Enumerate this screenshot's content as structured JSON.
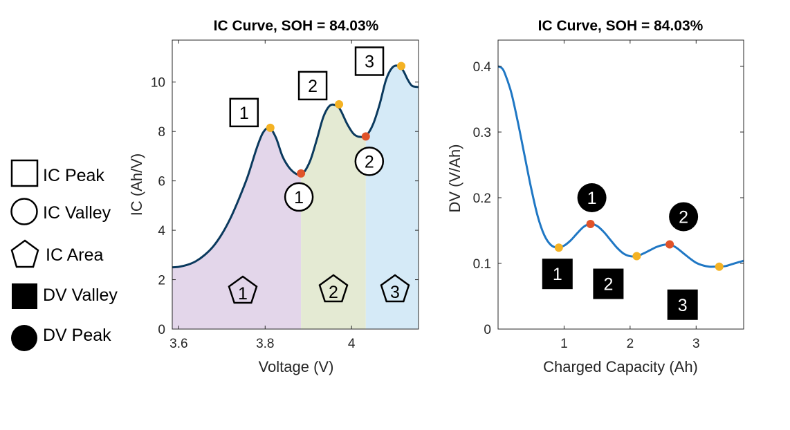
{
  "legend": {
    "items": [
      {
        "symbol": "square",
        "label": "IC Peak"
      },
      {
        "symbol": "circle",
        "label": "IC Valley"
      },
      {
        "symbol": "pentagon",
        "label": "IC Area"
      },
      {
        "symbol": "filled-square",
        "label": "DV Valley"
      },
      {
        "symbol": "filled-circle",
        "label": "DV Peak"
      }
    ]
  },
  "colors": {
    "ic_line": "#0b3a5e",
    "dv_line": "#1f77c4",
    "peak_marker": "#f4b223",
    "valley_marker": "#e0532a",
    "region1": "#e3d6ea",
    "region2": "#e4ead3",
    "region3": "#d5eaf7"
  },
  "chart_data": [
    {
      "type": "area",
      "title": "IC Curve, SOH = 84.03%",
      "xlabel": "Voltage (V)",
      "ylabel": "IC (Ah/V)",
      "xlim": [
        3.585,
        4.155
      ],
      "ylim": [
        0,
        11.7
      ],
      "xticks": [
        "3.6",
        "3.8",
        "4"
      ],
      "xtick_values": [
        3.6,
        3.8,
        4.0
      ],
      "yticks": [
        "0",
        "2",
        "4",
        "6",
        "8",
        "10"
      ],
      "ytick_values": [
        0,
        2,
        4,
        6,
        8,
        10
      ],
      "curve": {
        "x": [
          3.585,
          3.6,
          3.62,
          3.64,
          3.66,
          3.68,
          3.7,
          3.72,
          3.74,
          3.76,
          3.78,
          3.795,
          3.81,
          3.825,
          3.84,
          3.855,
          3.87,
          3.88,
          3.89,
          3.905,
          3.92,
          3.935,
          3.95,
          3.965,
          3.975,
          3.99,
          4.005,
          4.02,
          4.035,
          4.05,
          4.065,
          4.08,
          4.095,
          4.11,
          4.12,
          4.13,
          4.14,
          4.155
        ],
        "y": [
          2.5,
          2.52,
          2.6,
          2.75,
          3.0,
          3.35,
          3.85,
          4.5,
          5.3,
          6.2,
          7.3,
          7.95,
          8.15,
          7.75,
          7.0,
          6.55,
          6.3,
          6.25,
          6.35,
          6.85,
          7.7,
          8.6,
          9.05,
          9.05,
          8.85,
          8.3,
          7.9,
          7.78,
          7.85,
          8.3,
          9.1,
          10.1,
          10.6,
          10.65,
          10.45,
          10.1,
          9.85,
          9.8
        ]
      },
      "regions": [
        {
          "label": "1",
          "x_from": 3.585,
          "x_to": 3.883
        },
        {
          "label": "2",
          "x_from": 3.883,
          "x_to": 4.033
        },
        {
          "label": "3",
          "x_from": 4.033,
          "x_to": 4.155
        }
      ],
      "peaks": [
        {
          "label": "1",
          "x": 3.812,
          "y": 8.15
        },
        {
          "label": "2",
          "x": 3.971,
          "y": 9.1
        },
        {
          "label": "3",
          "x": 4.115,
          "y": 10.65
        }
      ],
      "valleys": [
        {
          "label": "1",
          "x": 3.883,
          "y": 6.3
        },
        {
          "label": "2",
          "x": 4.033,
          "y": 7.8
        }
      ]
    },
    {
      "type": "line",
      "title": "IC Curve, SOH = 84.03%",
      "xlabel": "Charged Capacity (Ah)",
      "ylabel": "DV (V/Ah)",
      "xlim": [
        0.0,
        3.72
      ],
      "ylim": [
        0,
        0.44
      ],
      "xticks": [
        "1",
        "2",
        "3"
      ],
      "xtick_values": [
        1,
        2,
        3
      ],
      "yticks": [
        "0",
        "0.1",
        "0.2",
        "0.3",
        "0.4"
      ],
      "ytick_values": [
        0,
        0.1,
        0.2,
        0.3,
        0.4
      ],
      "curve": {
        "x": [
          0.0,
          0.05,
          0.1,
          0.2,
          0.3,
          0.4,
          0.5,
          0.6,
          0.7,
          0.8,
          0.9,
          1.0,
          1.1,
          1.2,
          1.3,
          1.4,
          1.5,
          1.6,
          1.7,
          1.8,
          1.9,
          2.0,
          2.1,
          2.2,
          2.3,
          2.4,
          2.5,
          2.6,
          2.7,
          2.8,
          2.9,
          3.0,
          3.1,
          3.2,
          3.3,
          3.35,
          3.45,
          3.55,
          3.65,
          3.72
        ],
        "y": [
          0.4,
          0.398,
          0.39,
          0.36,
          0.315,
          0.265,
          0.215,
          0.172,
          0.143,
          0.128,
          0.124,
          0.127,
          0.135,
          0.146,
          0.156,
          0.16,
          0.157,
          0.148,
          0.136,
          0.124,
          0.115,
          0.111,
          0.111,
          0.115,
          0.12,
          0.125,
          0.128,
          0.129,
          0.124,
          0.116,
          0.108,
          0.101,
          0.097,
          0.095,
          0.095,
          0.095,
          0.096,
          0.099,
          0.102,
          0.104
        ]
      },
      "valleys": [
        {
          "label": "1",
          "x": 0.92,
          "y": 0.124
        },
        {
          "label": "2",
          "x": 2.1,
          "y": 0.111
        },
        {
          "label": "3",
          "x": 3.35,
          "y": 0.095
        }
      ],
      "peaks": [
        {
          "label": "1",
          "x": 1.4,
          "y": 0.16
        },
        {
          "label": "2",
          "x": 2.6,
          "y": 0.129
        }
      ]
    }
  ]
}
